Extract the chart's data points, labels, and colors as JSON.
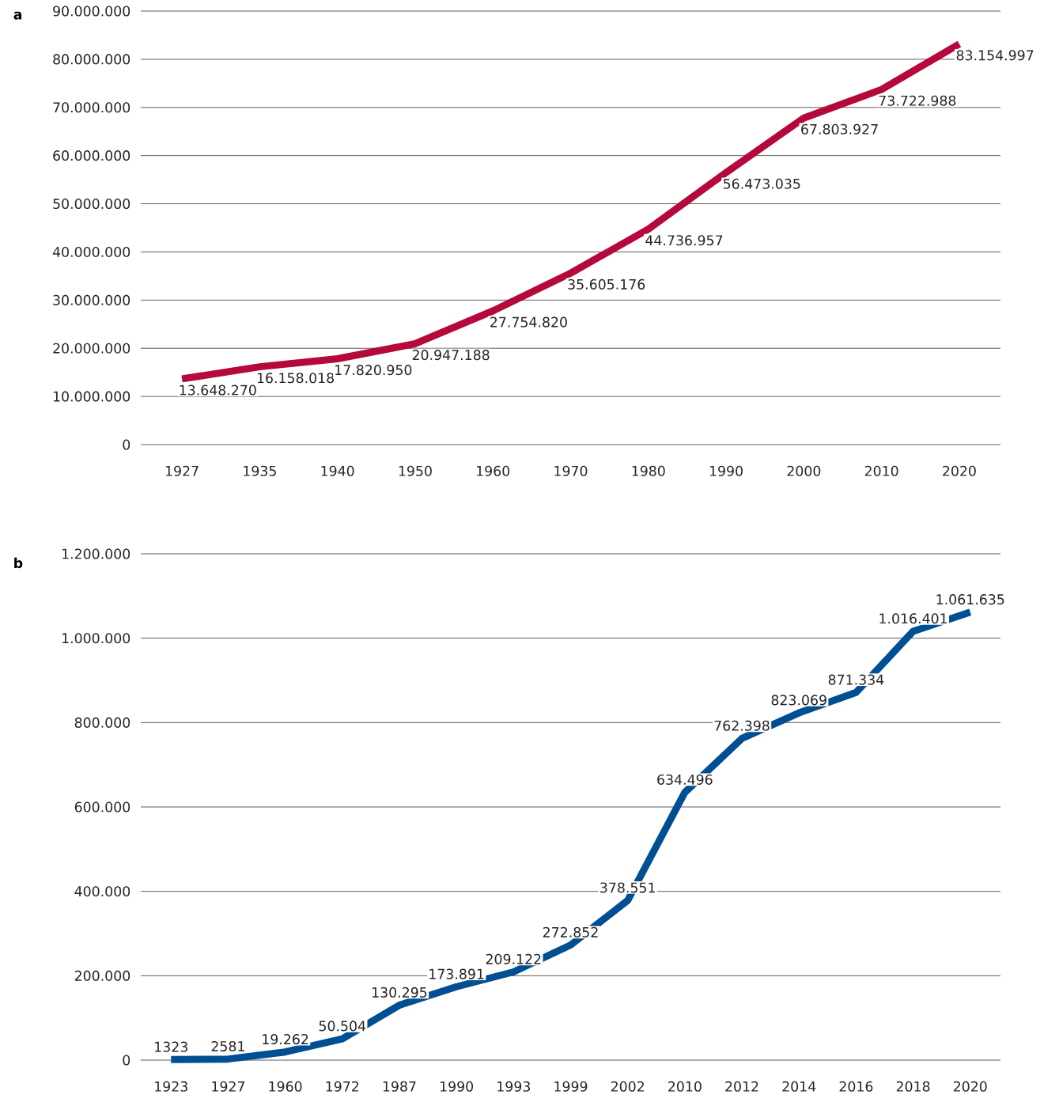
{
  "chart_data": [
    {
      "type": "line",
      "title": "a",
      "categories": [
        "1927",
        "1935",
        "1940",
        "1950",
        "1960",
        "1970",
        "1980",
        "1990",
        "2000",
        "2010",
        "2020"
      ],
      "values": [
        13648270,
        16158018,
        17820950,
        20947188,
        27754820,
        35605176,
        44736957,
        56473035,
        67803927,
        73722988,
        83154997
      ],
      "value_labels": [
        "13.648.270",
        "16.158.018",
        "17.820.950",
        "20.947.188",
        "27.754.820",
        "35.605.176",
        "44.736.957",
        "56.473.035",
        "67.803.927",
        "73.722.988",
        "83.154.997"
      ],
      "color": "#b5083b",
      "ylim": [
        0,
        90000000
      ],
      "yticks": [
        0,
        {
          "value": 10000000,
          "label": "10.000.000"
        },
        {
          "value": 20000000,
          "label": "20.000.000"
        },
        {
          "value": 30000000,
          "label": "30.000.000"
        },
        {
          "value": 40000000,
          "label": "40.000.000"
        },
        {
          "value": 50000000,
          "label": "50.000.000"
        },
        {
          "value": 60000000,
          "label": "60.000.000"
        },
        {
          "value": 70000000,
          "label": "70.000.000"
        },
        {
          "value": 80000000,
          "label": "80.000.000"
        },
        {
          "value": 90000000,
          "label": "90.000.000"
        }
      ],
      "grid": "y"
    },
    {
      "type": "line",
      "title": "b",
      "categories": [
        "1923",
        "1927",
        "1960",
        "1972",
        "1987",
        "1990",
        "1993",
        "1999",
        "2002",
        "2010",
        "2012",
        "2014",
        "2016",
        "2018",
        "2020"
      ],
      "values": [
        1323,
        2581,
        19262,
        50504,
        130295,
        173891,
        209122,
        272852,
        378551,
        634496,
        762398,
        823069,
        871334,
        1016401,
        1061635
      ],
      "value_labels": [
        "1323",
        "2581",
        "19.262",
        "50.504",
        "130.295",
        "173.891",
        "209.122",
        "272.852",
        "378.551",
        "634.496",
        "762.398",
        "823.069",
        "871.334",
        "1.016.401",
        "1.061.635"
      ],
      "color": "#004f93",
      "ylim": [
        0,
        1200000
      ],
      "yticks": [
        0,
        {
          "value": 200000,
          "label": "200.000"
        },
        {
          "value": 400000,
          "label": "400.000"
        },
        {
          "value": 600000,
          "label": "600.000"
        },
        {
          "value": 800000,
          "label": "800.000"
        },
        {
          "value": 1000000,
          "label": "1.000.000"
        },
        {
          "value": 1200000,
          "label": "1.200.000"
        }
      ],
      "grid": "y"
    }
  ]
}
